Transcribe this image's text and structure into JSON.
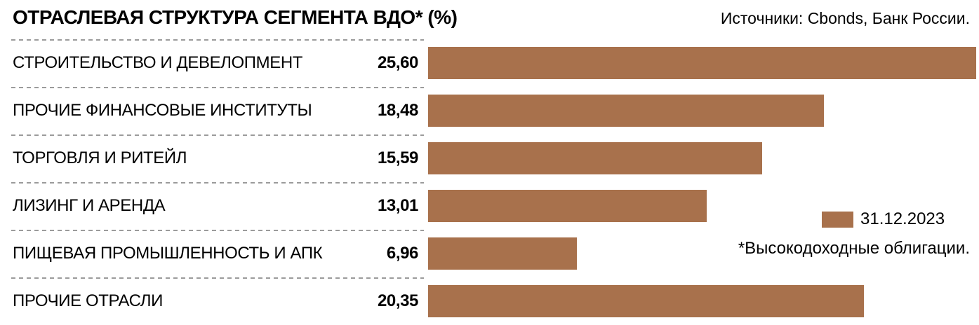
{
  "header": {
    "title": "ОТРАСЛЕВАЯ СТРУКТУРА СЕГМЕНТА ВДО* (%)",
    "source": "Источники: Cbonds, Банк России."
  },
  "legend": {
    "label": "31.12.2023"
  },
  "footnote": "*Высокодоходные облигации.",
  "colors": {
    "bar": "#a8714c",
    "divider": "#9b9b9b",
    "text": "#000000"
  },
  "chart_data": {
    "type": "bar",
    "orientation": "horizontal",
    "title": "ОТРАСЛЕВАЯ СТРУКТУРА СЕГМЕНТА ВДО* (%)",
    "series_name": "31.12.2023",
    "categories": [
      "СТРОИТЕЛЬСТВО И ДЕВЕЛОПМЕНТ",
      "ПРОЧИЕ ФИНАНСОВЫЕ ИНСТИТУТЫ",
      "ТОРГОВЛЯ И РИТЕЙЛ",
      "ЛИЗИНГ И АРЕНДА",
      "ПИЩЕВАЯ ПРОМЫШЛЕННОСТЬ И АПК",
      "ПРОЧИЕ ОТРАСЛИ"
    ],
    "values": [
      25.6,
      18.48,
      15.59,
      13.01,
      6.96,
      20.35
    ],
    "value_labels": [
      "25,60",
      "18,48",
      "15,59",
      "13,01",
      "6,96",
      "20,35"
    ],
    "xlim": [
      0,
      25.6
    ],
    "unit": "%",
    "grid": false,
    "legend_position": "right"
  }
}
